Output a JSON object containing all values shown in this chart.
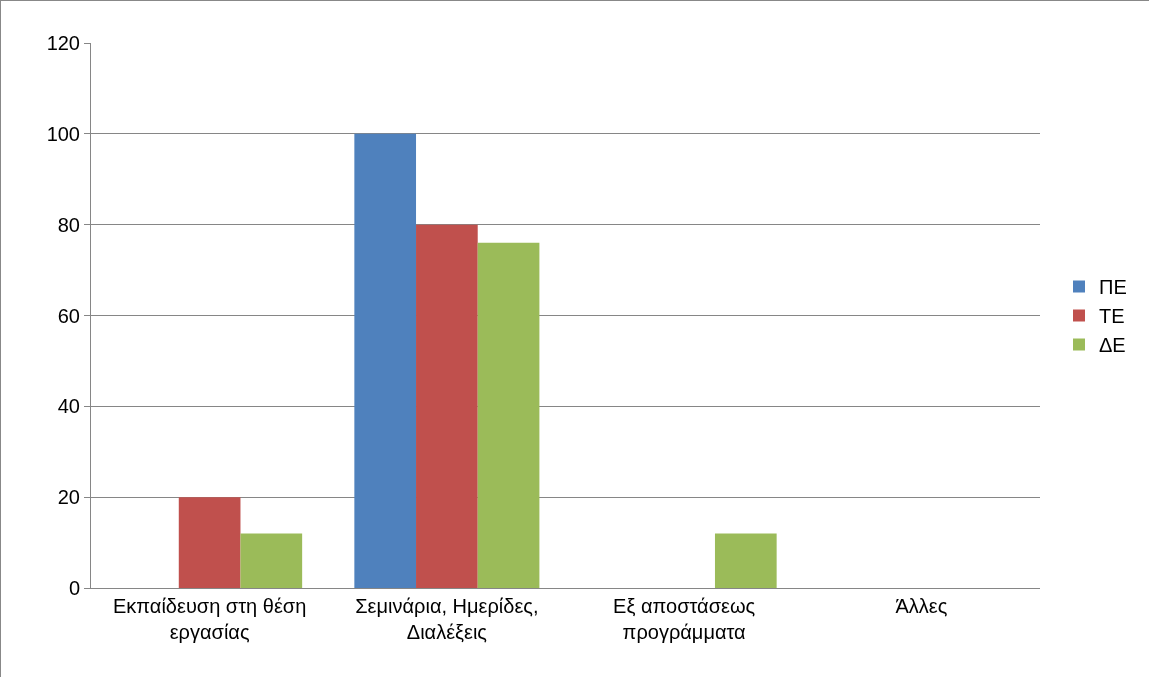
{
  "chart_data": {
    "type": "bar",
    "categories": [
      "Εκπαίδευση στη θέση εργασίας",
      "Σεμινάρια, Ημερίδες, Διαλέξεις",
      "Εξ αποστάσεως προγράμματα",
      "Άλλες"
    ],
    "series": [
      {
        "name": "ΠΕ",
        "color": "#4f81bd",
        "values": [
          0,
          100,
          0,
          0
        ]
      },
      {
        "name": "ΤΕ",
        "color": "#c0504d",
        "values": [
          20,
          80,
          0,
          0
        ]
      },
      {
        "name": "ΔΕ",
        "color": "#9bbb59",
        "values": [
          12,
          76,
          12,
          0
        ]
      }
    ],
    "ylim": [
      0,
      120
    ],
    "yticks": [
      0,
      20,
      40,
      60,
      80,
      100,
      120
    ],
    "grid": "y",
    "legend": "right"
  }
}
